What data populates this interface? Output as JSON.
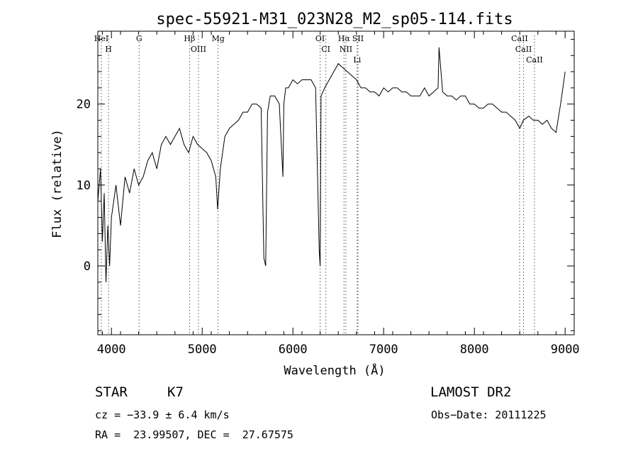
{
  "chart_data": {
    "type": "line",
    "title": "spec-55921-M31_023N28_M2_sp05-114.fits",
    "xlabel": "Wavelength (Å)",
    "ylabel": "Flux (relative)",
    "xlim": [
      3850,
      9100
    ],
    "ylim": [
      -8.5,
      29
    ],
    "x_ticks": [
      4000,
      5000,
      6000,
      7000,
      8000,
      9000
    ],
    "y_ticks": [
      0,
      10,
      20
    ],
    "grid": false,
    "legend": "none",
    "line_color": "#000000",
    "spectral_lines": [
      {
        "label": "HeI",
        "wavelength": 3889
      },
      {
        "label": "H",
        "wavelength": 3968
      },
      {
        "label": "G",
        "wavelength": 4305
      },
      {
        "label": "Hβ",
        "wavelength": 4861
      },
      {
        "label": "OIII",
        "wavelength": 4959
      },
      {
        "label": "Mg",
        "wavelength": 5175
      },
      {
        "label": "OI",
        "wavelength": 6300
      },
      {
        "label": "CI",
        "wavelength": 6363
      },
      {
        "label": "Hα",
        "wavelength": 6563
      },
      {
        "label": "NII",
        "wavelength": 6584
      },
      {
        "label": "SII",
        "wavelength": 6717
      },
      {
        "label": "Li",
        "wavelength": 6708
      },
      {
        "label": "CaII",
        "wavelength": 8498
      },
      {
        "label": "CaII",
        "wavelength": 8542
      },
      {
        "label": "CaII",
        "wavelength": 8662
      }
    ],
    "series": [
      {
        "x": [
          3850,
          3880,
          3900,
          3920,
          3940,
          3960,
          3980,
          4000,
          4050,
          4100,
          4150,
          4200,
          4250,
          4300,
          4350,
          4400,
          4450,
          4500,
          4550,
          4600,
          4650,
          4700,
          4750,
          4800,
          4850,
          4900,
          4950,
          5000,
          5050,
          5100,
          5150,
          5170,
          5200,
          5250,
          5300,
          5350,
          5400,
          5450,
          5500,
          5550,
          5600,
          5650,
          5680,
          5700,
          5720,
          5750,
          5800,
          5850,
          5890,
          5900,
          5920,
          5950,
          6000,
          6050,
          6100,
          6150,
          6200,
          6250,
          6290,
          6300,
          6310,
          6350,
          6400,
          6450,
          6500,
          6550,
          6600,
          6650,
          6700,
          6750,
          6800,
          6850,
          6900,
          6950,
          7000,
          7050,
          7100,
          7150,
          7200,
          7250,
          7300,
          7350,
          7400,
          7450,
          7500,
          7550,
          7600,
          7610,
          7650,
          7700,
          7750,
          7800,
          7850,
          7900,
          7950,
          8000,
          8050,
          8100,
          8150,
          8200,
          8250,
          8300,
          8350,
          8400,
          8450,
          8500,
          8540,
          8600,
          8650,
          8700,
          8750,
          8800,
          8850,
          8900,
          8950,
          9000
        ],
        "values": [
          8,
          12,
          3,
          9,
          -2,
          5,
          0,
          6,
          10,
          5,
          11,
          9,
          12,
          10,
          11,
          13,
          14,
          12,
          15,
          16,
          15,
          16,
          17,
          15,
          14,
          16,
          15,
          14.5,
          14,
          13,
          11,
          7,
          12,
          16,
          17,
          17.5,
          18,
          19,
          19,
          20,
          20,
          19.5,
          1,
          0,
          19,
          21,
          21,
          20,
          11,
          20,
          22,
          22,
          23,
          22.5,
          23,
          23,
          23,
          22,
          2,
          0,
          21,
          22,
          23,
          24,
          25,
          24.5,
          24,
          23.5,
          23,
          22,
          22,
          21.5,
          21.5,
          21,
          22,
          21.5,
          22,
          22,
          21.5,
          21.5,
          21,
          21,
          21,
          22,
          21,
          21.5,
          22,
          27,
          21.5,
          21,
          21,
          20.5,
          21,
          21,
          20,
          20,
          19.5,
          19.5,
          20,
          20,
          19.5,
          19,
          19,
          18.5,
          18,
          17,
          18,
          18.5,
          18,
          18,
          17.5,
          18,
          17,
          16.5,
          20,
          24
        ]
      }
    ]
  },
  "footer": {
    "object_class": "STAR",
    "subclass": "K7",
    "survey": "LAMOST DR2",
    "velocity": "cz = −33.9 ± 6.4 km/s",
    "obs_date": "Obs−Date: 20111225",
    "coords": "RA =  23.99507, DEC =  27.67575"
  }
}
